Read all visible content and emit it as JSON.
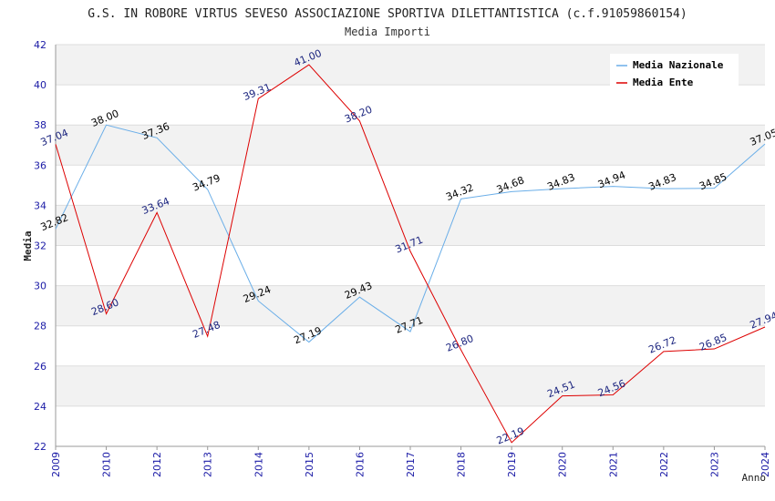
{
  "chart_data": {
    "type": "line",
    "title": "G.S. IN ROBORE VIRTUS SEVESO ASSOCIAZIONE SPORTIVA DILETTANTISTICA (c.f.91059860154)",
    "subtitle": "Media Importi",
    "xlabel": "Anno",
    "ylabel": "Media",
    "ylim": [
      22,
      42
    ],
    "yticks": [
      "22",
      "24",
      "26",
      "28",
      "30",
      "32",
      "34",
      "36",
      "38",
      "40",
      "42"
    ],
    "categories": [
      "2009",
      "2010",
      "2012",
      "2013",
      "2014",
      "2015",
      "2016",
      "2017",
      "2018",
      "2019",
      "2020",
      "2021",
      "2022",
      "2023",
      "2024"
    ],
    "grid": true,
    "legend_position": "top-right",
    "series": [
      {
        "name": "Media Nazionale",
        "color": "#6aaee8",
        "label_color": "#000000",
        "values": [
          32.82,
          38.0,
          37.36,
          34.79,
          29.24,
          27.19,
          29.43,
          27.71,
          34.32,
          34.68,
          34.83,
          34.94,
          34.83,
          34.85,
          37.05
        ],
        "labels": [
          "32.82",
          "38.00",
          "37.36",
          "34.79",
          "29.24",
          "27.19",
          "29.43",
          "27.71",
          "34.32",
          "34.68",
          "34.83",
          "34.94",
          "34.83",
          "34.85",
          "37.05"
        ]
      },
      {
        "name": "Media Ente",
        "color": "#dd0000",
        "label_color": "#1a237e",
        "values": [
          37.04,
          28.6,
          33.64,
          27.48,
          39.31,
          41.0,
          38.2,
          31.71,
          26.8,
          22.19,
          24.51,
          24.56,
          26.72,
          26.85,
          27.94
        ],
        "labels": [
          "37.04",
          "28.60",
          "33.64",
          "27.48",
          "39.31",
          "41.00",
          "38.20",
          "31.71",
          "26.80",
          "22.19",
          "24.51",
          "24.56",
          "26.72",
          "26.85",
          "27.94"
        ]
      }
    ]
  }
}
